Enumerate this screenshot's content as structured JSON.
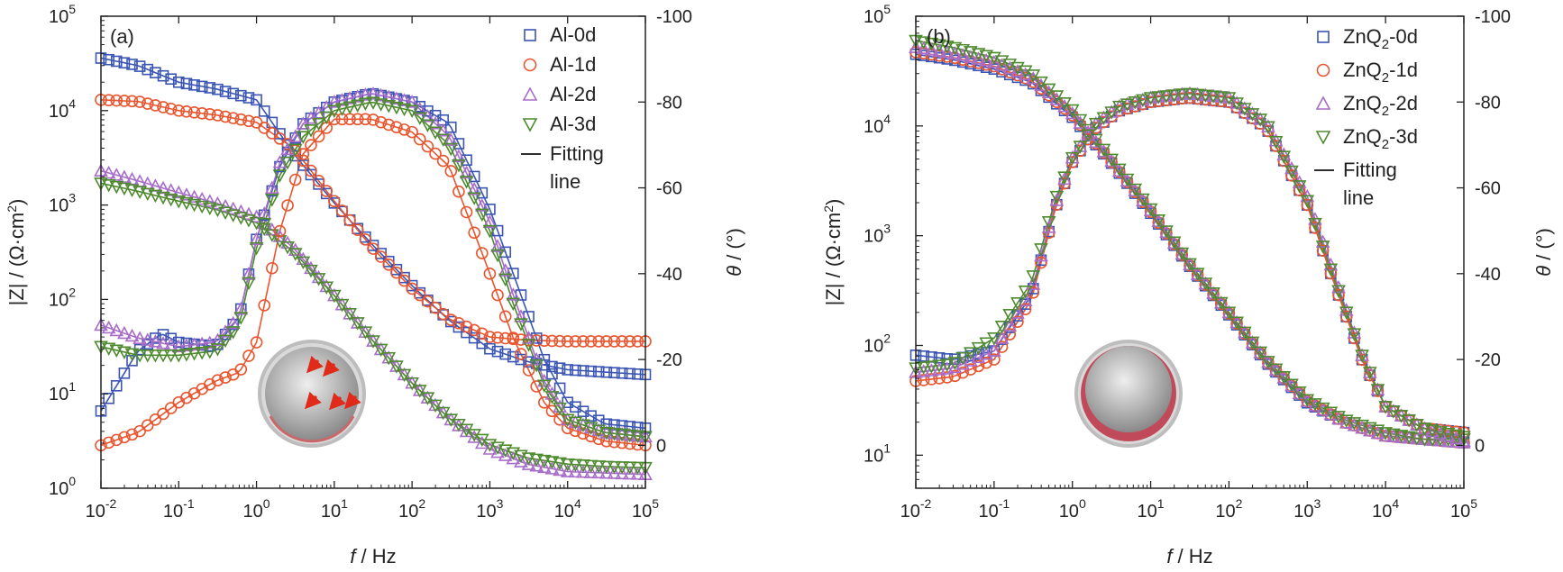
{
  "chart_data": [
    {
      "type": "scatter",
      "panel_label": "(a)",
      "xlabel": "f / Hz",
      "ylabel_left": "|Z| / (Ω·cm2)",
      "ylabel_right": "θ / (°)",
      "x_scale": "log",
      "y_left_scale": "log",
      "xlim": [
        0.01,
        100000
      ],
      "ylim_left": [
        1,
        100000
      ],
      "ylim_right": [
        10,
        -100
      ],
      "x_ticks": [
        0.01,
        0.1,
        1,
        10,
        100,
        1000,
        10000,
        100000
      ],
      "x_tick_labels": [
        [
          "10",
          "-2"
        ],
        [
          "10",
          "-1"
        ],
        [
          "10",
          "0"
        ],
        [
          "10",
          "1"
        ],
        [
          "10",
          "2"
        ],
        [
          "10",
          "3"
        ],
        [
          "10",
          "4"
        ],
        [
          "10",
          "5"
        ]
      ],
      "y_left_ticks": [
        1,
        10,
        100,
        1000,
        10000,
        100000
      ],
      "y_left_tick_labels": [
        [
          "10",
          "0"
        ],
        [
          "10",
          "1"
        ],
        [
          "10",
          "2"
        ],
        [
          "10",
          "3"
        ],
        [
          "10",
          "4"
        ],
        [
          "10",
          "5"
        ]
      ],
      "y_right_ticks": [
        0,
        -20,
        -40,
        -60,
        -80,
        -100
      ],
      "y_right_tick_labels": [
        "0",
        "-20",
        "-40",
        "-60",
        "-80",
        "-100"
      ],
      "legend_position": "top-right",
      "legend": [
        {
          "label_main": "Al-0d",
          "label_sub": "",
          "label_suffix": "",
          "marker": "square",
          "color": "#3a55b4"
        },
        {
          "label_main": "Al-1d",
          "label_sub": "",
          "label_suffix": "",
          "marker": "circle",
          "color": "#e8552f"
        },
        {
          "label_main": "Al-2d",
          "label_sub": "",
          "label_suffix": "",
          "marker": "triangle-up",
          "color": "#a86cc9"
        },
        {
          "label_main": "Al-3d",
          "label_sub": "",
          "label_suffix": "",
          "marker": "triangle-down",
          "color": "#4e8a2e"
        },
        {
          "label_main": "Fitting",
          "label_line2": "line",
          "marker": "line",
          "color": "#111111"
        }
      ],
      "series": [
        {
          "name": "Al-0d",
          "quantity": "|Z|",
          "color": "#3a55b4",
          "marker": "square",
          "x": [
            0.01,
            0.03,
            0.1,
            0.3,
            1,
            3,
            10,
            30,
            100,
            300,
            1000,
            3000,
            10000,
            30000,
            100000
          ],
          "y": [
            36000,
            30000,
            20000,
            17000,
            13000,
            3500,
            1050,
            390,
            140,
            60,
            30,
            22,
            18,
            17,
            16
          ]
        },
        {
          "name": "Al-1d",
          "quantity": "|Z|",
          "color": "#e8552f",
          "marker": "circle",
          "x": [
            0.01,
            0.03,
            0.1,
            0.3,
            1,
            3,
            10,
            30,
            100,
            300,
            1000,
            3000,
            10000,
            30000,
            100000
          ],
          "y": [
            13000,
            12500,
            10000,
            9000,
            7500,
            4000,
            1100,
            360,
            130,
            62,
            40,
            37,
            36,
            36,
            36
          ]
        },
        {
          "name": "Al-2d",
          "quantity": "|Z|",
          "color": "#a86cc9",
          "marker": "triangle-up",
          "x": [
            0.01,
            0.03,
            0.1,
            0.3,
            1,
            3,
            10,
            30,
            100,
            300,
            1000,
            3000,
            10000,
            30000,
            100000
          ],
          "y": [
            2300,
            1800,
            1350,
            1050,
            750,
            350,
            110,
            38,
            13,
            5.5,
            2.6,
            1.8,
            1.5,
            1.45,
            1.4
          ]
        },
        {
          "name": "Al-3d",
          "quantity": "|Z|",
          "color": "#4e8a2e",
          "marker": "triangle-down",
          "x": [
            0.01,
            0.03,
            0.1,
            0.3,
            1,
            3,
            10,
            30,
            100,
            300,
            1000,
            3000,
            10000,
            30000,
            100000
          ],
          "y": [
            1700,
            1400,
            1100,
            900,
            650,
            320,
            110,
            38,
            13,
            5.5,
            2.9,
            2.1,
            1.8,
            1.7,
            1.65
          ]
        },
        {
          "name": "Al-0d",
          "quantity": "θ",
          "color": "#3a55b4",
          "marker": "square",
          "x": [
            0.01,
            0.03,
            0.06,
            0.1,
            0.3,
            0.6,
            1,
            2,
            4,
            10,
            30,
            100,
            300,
            1000,
            2000,
            5000,
            10000,
            30000,
            100000
          ],
          "y": [
            -8,
            -22,
            -26,
            -24,
            -23,
            -30,
            -48,
            -65,
            -75,
            -80,
            -82,
            -80,
            -75,
            -55,
            -40,
            -20,
            -10,
            -5,
            -4
          ]
        },
        {
          "name": "Al-1d",
          "quantity": "θ",
          "color": "#e8552f",
          "marker": "circle",
          "x": [
            0.01,
            0.03,
            0.1,
            0.3,
            0.6,
            1,
            2,
            4,
            10,
            30,
            100,
            300,
            1000,
            2000,
            5000,
            10000,
            30000,
            100000
          ],
          "y": [
            0,
            -3,
            -10,
            -15,
            -17,
            -24,
            -50,
            -68,
            -76,
            -76,
            -73,
            -65,
            -40,
            -25,
            -10,
            -4,
            -1,
            0
          ]
        },
        {
          "name": "Al-2d",
          "quantity": "θ",
          "color": "#a86cc9",
          "marker": "triangle-up",
          "x": [
            0.01,
            0.03,
            0.1,
            0.3,
            0.6,
            1,
            2,
            4,
            10,
            30,
            100,
            300,
            1000,
            2000,
            5000,
            10000,
            30000,
            100000
          ],
          "y": [
            -28,
            -25,
            -23,
            -24,
            -30,
            -48,
            -66,
            -75,
            -80,
            -82,
            -80,
            -72,
            -52,
            -35,
            -15,
            -6,
            -3,
            -2
          ]
        },
        {
          "name": "Al-3d",
          "quantity": "θ",
          "color": "#4e8a2e",
          "marker": "triangle-down",
          "x": [
            0.01,
            0.03,
            0.1,
            0.3,
            0.6,
            1,
            2,
            4,
            10,
            30,
            100,
            300,
            1000,
            2000,
            5000,
            10000,
            30000,
            100000
          ],
          "y": [
            -23,
            -21,
            -21,
            -22,
            -28,
            -46,
            -63,
            -72,
            -78,
            -80,
            -78,
            -70,
            -50,
            -33,
            -14,
            -6,
            -3,
            -2
          ]
        }
      ]
    },
    {
      "type": "scatter",
      "panel_label": "(b)",
      "xlabel": "f / Hz",
      "ylabel_left": "|Z| / (Ω·cm2)",
      "ylabel_right": "θ / (°)",
      "x_scale": "log",
      "y_left_scale": "log",
      "xlim": [
        0.01,
        100000
      ],
      "ylim_left": [
        5,
        100000
      ],
      "ylim_right": [
        10,
        -100
      ],
      "x_ticks": [
        0.01,
        0.1,
        1,
        10,
        100,
        1000,
        10000,
        100000
      ],
      "x_tick_labels": [
        [
          "10",
          "-2"
        ],
        [
          "10",
          "-1"
        ],
        [
          "10",
          "0"
        ],
        [
          "10",
          "1"
        ],
        [
          "10",
          "2"
        ],
        [
          "10",
          "3"
        ],
        [
          "10",
          "4"
        ],
        [
          "10",
          "5"
        ]
      ],
      "y_left_ticks": [
        10,
        100,
        1000,
        10000,
        100000
      ],
      "y_left_tick_labels": [
        [
          "10",
          "1"
        ],
        [
          "10",
          "2"
        ],
        [
          "10",
          "3"
        ],
        [
          "10",
          "4"
        ],
        [
          "10",
          "5"
        ]
      ],
      "y_right_ticks": [
        0,
        -20,
        -40,
        -60,
        -80,
        -100
      ],
      "y_right_tick_labels": [
        "0",
        "-20",
        "-40",
        "-60",
        "-80",
        "-100"
      ],
      "legend_position": "top-right",
      "legend": [
        {
          "label_main": "ZnQ",
          "label_sub": "2",
          "label_suffix": "-0d",
          "marker": "square",
          "color": "#3a55b4"
        },
        {
          "label_main": "ZnQ",
          "label_sub": "2",
          "label_suffix": "-1d",
          "marker": "circle",
          "color": "#e8552f"
        },
        {
          "label_main": "ZnQ",
          "label_sub": "2",
          "label_suffix": "-2d",
          "marker": "triangle-up",
          "color": "#a86cc9"
        },
        {
          "label_main": "ZnQ",
          "label_sub": "2",
          "label_suffix": "-3d",
          "marker": "triangle-down",
          "color": "#4e8a2e"
        },
        {
          "label_main": "Fitting",
          "label_line2": "line",
          "marker": "line",
          "color": "#111111"
        }
      ],
      "series": [
        {
          "name": "ZnQ2-0d",
          "quantity": "|Z|",
          "color": "#3a55b4",
          "marker": "square",
          "x": [
            0.01,
            0.03,
            0.1,
            0.3,
            1,
            3,
            10,
            30,
            100,
            300,
            1000,
            3000,
            10000,
            30000,
            100000
          ],
          "y": [
            45000,
            40000,
            33000,
            25000,
            12000,
            4800,
            1600,
            550,
            190,
            70,
            30,
            20,
            15,
            14,
            13
          ]
        },
        {
          "name": "ZnQ2-1d",
          "quantity": "|Z|",
          "color": "#e8552f",
          "marker": "circle",
          "x": [
            0.01,
            0.03,
            0.1,
            0.3,
            1,
            3,
            10,
            30,
            100,
            300,
            1000,
            3000,
            10000,
            30000,
            100000
          ],
          "y": [
            47000,
            42000,
            35000,
            26000,
            12500,
            4900,
            1650,
            560,
            195,
            72,
            31,
            20,
            15,
            14,
            13
          ]
        },
        {
          "name": "ZnQ2-2d",
          "quantity": "|Z|",
          "color": "#a86cc9",
          "marker": "triangle-up",
          "x": [
            0.01,
            0.03,
            0.1,
            0.3,
            1,
            3,
            10,
            30,
            100,
            300,
            1000,
            3000,
            10000,
            30000,
            100000
          ],
          "y": [
            52000,
            46000,
            38000,
            28000,
            13000,
            5000,
            1700,
            570,
            200,
            73,
            31,
            20,
            15,
            14,
            13
          ]
        },
        {
          "name": "ZnQ2-3d",
          "quantity": "|Z|",
          "color": "#4e8a2e",
          "marker": "triangle-down",
          "x": [
            0.01,
            0.03,
            0.1,
            0.3,
            1,
            3,
            10,
            30,
            100,
            300,
            1000,
            3000,
            10000,
            30000,
            100000
          ],
          "y": [
            60000,
            52000,
            42000,
            30000,
            14000,
            5200,
            1750,
            580,
            200,
            74,
            32,
            21,
            16,
            14,
            14
          ]
        },
        {
          "name": "ZnQ2-0d",
          "quantity": "θ",
          "color": "#3a55b4",
          "marker": "square",
          "x": [
            0.01,
            0.03,
            0.1,
            0.3,
            0.6,
            1,
            2,
            4,
            10,
            30,
            100,
            300,
            1000,
            2000,
            5000,
            10000,
            30000,
            100000
          ],
          "y": [
            -21,
            -20,
            -22,
            -35,
            -55,
            -66,
            -74,
            -78,
            -80,
            -81,
            -80,
            -74,
            -56,
            -40,
            -20,
            -9,
            -4,
            -3
          ]
        },
        {
          "name": "ZnQ2-1d",
          "quantity": "θ",
          "color": "#e8552f",
          "marker": "circle",
          "x": [
            0.01,
            0.03,
            0.1,
            0.3,
            0.6,
            1,
            2,
            4,
            10,
            30,
            100,
            300,
            1000,
            2000,
            5000,
            10000,
            30000,
            100000
          ],
          "y": [
            -15,
            -16,
            -20,
            -34,
            -55,
            -66,
            -74,
            -78,
            -80,
            -81,
            -80,
            -74,
            -56,
            -40,
            -20,
            -9,
            -4,
            -3
          ]
        },
        {
          "name": "ZnQ2-2d",
          "quantity": "θ",
          "color": "#a86cc9",
          "marker": "triangle-up",
          "x": [
            0.01,
            0.03,
            0.1,
            0.3,
            0.6,
            1,
            2,
            4,
            10,
            30,
            100,
            300,
            1000,
            2000,
            5000,
            10000,
            30000,
            100000
          ],
          "y": [
            -17,
            -18,
            -22,
            -36,
            -56,
            -67,
            -75,
            -79,
            -81,
            -82,
            -81,
            -75,
            -58,
            -42,
            -21,
            -9,
            -4,
            -1
          ]
        },
        {
          "name": "ZnQ2-3d",
          "quantity": "θ",
          "color": "#4e8a2e",
          "marker": "triangle-down",
          "x": [
            0.01,
            0.03,
            0.1,
            0.3,
            0.6,
            1,
            2,
            4,
            10,
            30,
            100,
            300,
            1000,
            2000,
            5000,
            10000,
            30000,
            100000
          ],
          "y": [
            -18,
            -19,
            -25,
            -38,
            -57,
            -67,
            -75,
            -79,
            -81,
            -82,
            -81,
            -75,
            -57,
            -41,
            -21,
            -9,
            -4,
            -2
          ]
        }
      ]
    }
  ]
}
